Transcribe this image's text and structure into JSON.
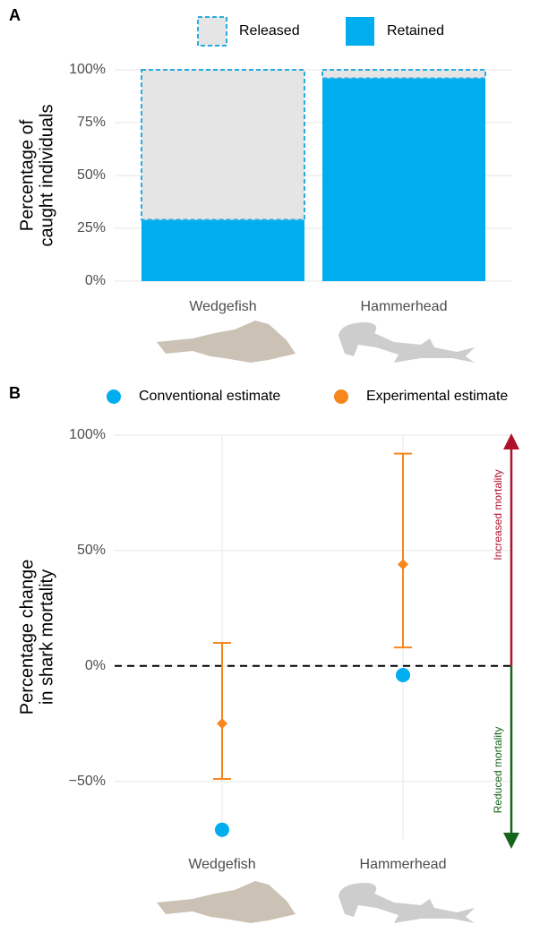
{
  "chart_data": [
    {
      "type": "stacked_bar",
      "label": "A",
      "y_label": [
        "Percentage of",
        "caught individuals"
      ],
      "categories": [
        "Wedgefish",
        "Hammerhead"
      ],
      "series": [
        {
          "name": "Released",
          "color": "#e5e5e5",
          "border": "#29abe2",
          "values": [
            71,
            4
          ]
        },
        {
          "name": "Retained",
          "color": "#00aeef",
          "values": [
            29,
            96
          ]
        }
      ],
      "ylim": [
        0,
        100
      ],
      "yticks": [
        {
          "value": 0,
          "label": "0%"
        },
        {
          "value": 25,
          "label": "25%"
        },
        {
          "value": 50,
          "label": "50%"
        },
        {
          "value": 75,
          "label": "75%"
        },
        {
          "value": 100,
          "label": "100%"
        }
      ],
      "grid": true
    },
    {
      "type": "point_errorbar",
      "label": "B",
      "y_label": [
        "Percentage change",
        "in shark mortality"
      ],
      "categories": [
        "Wedgefish",
        "Hammerhead"
      ],
      "series": [
        {
          "name": "Conventional estimate",
          "color": "#00aeef",
          "marker": "circle",
          "values": [
            -71,
            -4
          ]
        },
        {
          "name": "Experimental estimate",
          "color": "#f7861c",
          "marker": "diamond",
          "values": [
            -25,
            44
          ],
          "lower": [
            -49,
            8
          ],
          "upper": [
            10,
            92
          ]
        }
      ],
      "ylim": [
        -75,
        100
      ],
      "yticks": [
        {
          "value": -50,
          "label": "−50%"
        },
        {
          "value": 0,
          "label": "0%"
        },
        {
          "value": 50,
          "label": "50%"
        },
        {
          "value": 100,
          "label": "100%"
        }
      ],
      "annotations": [
        "Increased mortality",
        "Reduced mortality"
      ],
      "grid": true
    }
  ]
}
